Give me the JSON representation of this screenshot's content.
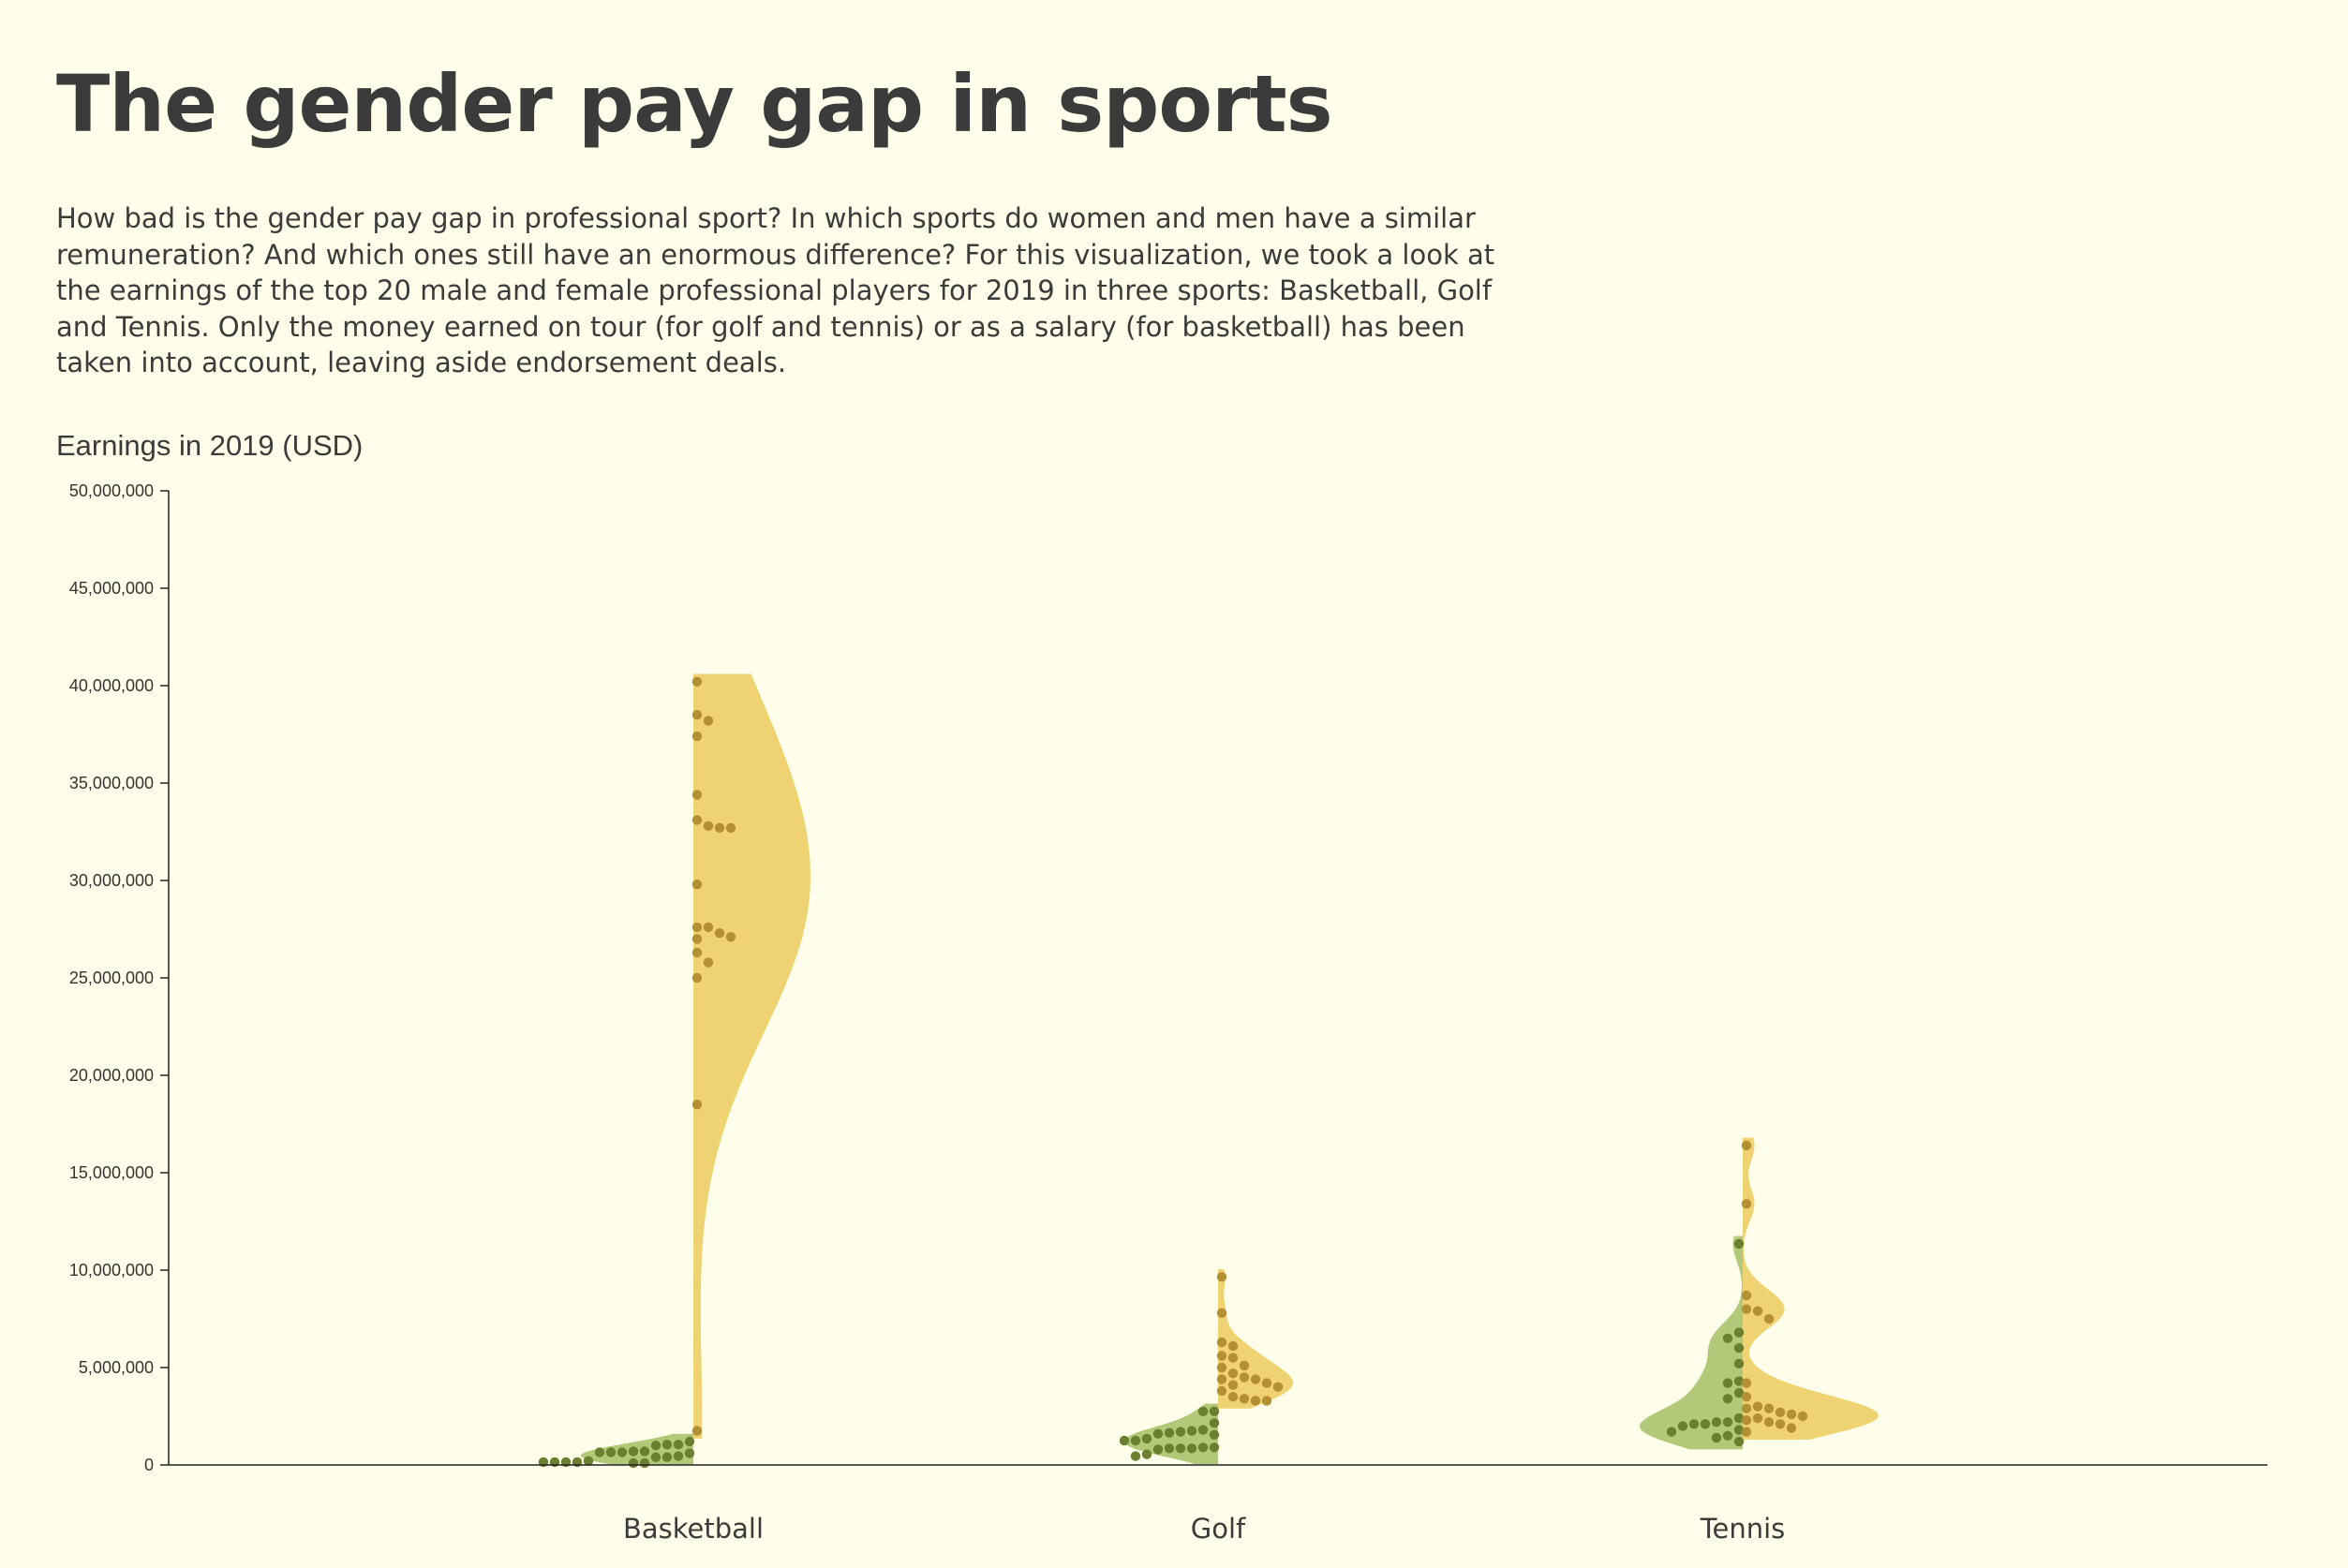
{
  "title": "The gender pay gap in sports",
  "intro": "How bad is the gender pay gap in professional sport? In which sports do women and men have a similar remuneration? And which ones still have an enormous difference? For this visualization, we took a look at the earnings of the top 20 male and female professional players for 2019 in three sports: Basketball, Golf and Tennis. Only the money earned on tour (for golf and tennis) or as a salary (for basketball) has been taken into account, leaving aside endorsement deals.",
  "colors": {
    "background": "#fffeea",
    "women_area": "#b3c97a",
    "women_dot": "#6b7f31",
    "men_area": "#efd272",
    "men_dot": "#b48f34",
    "axis": "#222222"
  },
  "chart_data": {
    "type": "violin",
    "ylabel": "Earnings in 2019 (USD)",
    "ylim": [
      0,
      50000000
    ],
    "yticks": [
      "0",
      "5,000,000",
      "10,000,000",
      "15,000,000",
      "20,000,000",
      "25,000,000",
      "30,000,000",
      "35,000,000",
      "40,000,000",
      "45,000,000",
      "50,000,000"
    ],
    "categories": [
      "Basketball",
      "Golf",
      "Tennis"
    ],
    "series": [
      {
        "side": "left",
        "values": [
          [
            150000,
            150000,
            150000,
            400000,
            400000,
            450000,
            100000,
            100000,
            150000,
            200000,
            650000,
            700000,
            700000,
            650000,
            600000,
            1050000,
            1000000,
            1050000,
            650000,
            1200000
          ],
          [
            1350000,
            1650000,
            1250000,
            1750000,
            1800000,
            1600000,
            1550000,
            850000,
            900000,
            800000,
            900000,
            2150000,
            1250000,
            1700000,
            2750000,
            2750000,
            850000,
            550000,
            450000,
            850000
          ],
          [
            11350000,
            6800000,
            6500000,
            6000000,
            5200000,
            4300000,
            4200000,
            3700000,
            3400000,
            2400000,
            2200000,
            2100000,
            2100000,
            2000000,
            1800000,
            1700000,
            1500000,
            1400000,
            1200000,
            2200000
          ]
        ]
      },
      {
        "side": "right",
        "values": [
          [
            40200000,
            38500000,
            38200000,
            37400000,
            34400000,
            33100000,
            32700000,
            32700000,
            32800000,
            29800000,
            27600000,
            27300000,
            27600000,
            27100000,
            27000000,
            26300000,
            25800000,
            25000000,
            18500000,
            1750000
          ],
          [
            9650000,
            7800000,
            6300000,
            6100000,
            5500000,
            5600000,
            5100000,
            5000000,
            4700000,
            4500000,
            4400000,
            4400000,
            4200000,
            4100000,
            4000000,
            3800000,
            3400000,
            3300000,
            3300000,
            3500000
          ],
          [
            16400000,
            13400000,
            8700000,
            8000000,
            7900000,
            7500000,
            4200000,
            3500000,
            3000000,
            2900000,
            2900000,
            2700000,
            2600000,
            2500000,
            2400000,
            2300000,
            2200000,
            2100000,
            1900000,
            1700000
          ]
        ]
      }
    ]
  }
}
